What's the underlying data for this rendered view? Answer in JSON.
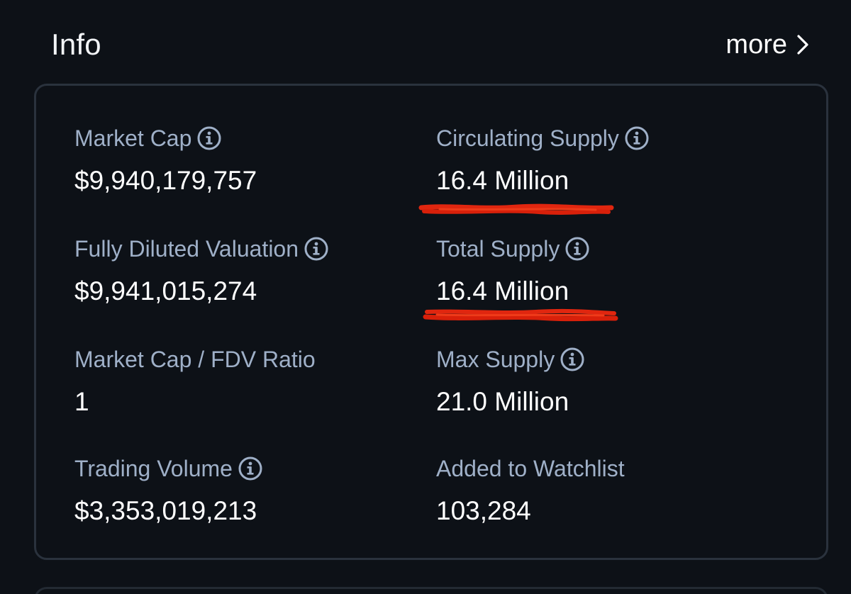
{
  "header": {
    "title": "Info",
    "more_label": "more"
  },
  "stats": {
    "market_cap": {
      "label": "Market Cap",
      "value": "$9,940,179,757"
    },
    "circulating_supply": {
      "label": "Circulating Supply",
      "value": "16.4 Million"
    },
    "fdv": {
      "label": "Fully Diluted Valuation",
      "value": "$9,941,015,274"
    },
    "total_supply": {
      "label": "Total Supply",
      "value": "16.4 Million"
    },
    "mcap_fdv_ratio": {
      "label": "Market Cap / FDV Ratio",
      "value": "1"
    },
    "max_supply": {
      "label": "Max Supply",
      "value": "21.0 Million"
    },
    "trading_volume": {
      "label": "Trading Volume",
      "value": "$3,353,019,213"
    },
    "watchlist": {
      "label": "Added to Watchlist",
      "value": "103,284"
    }
  },
  "icons": {
    "info": "info-circle-icon",
    "chevron": "chevron-right-icon"
  },
  "colors": {
    "background": "#0d1117",
    "label": "#9fb0c8",
    "value": "#ffffff",
    "card_border": "#2a323d",
    "annotation": "#e0260f"
  }
}
